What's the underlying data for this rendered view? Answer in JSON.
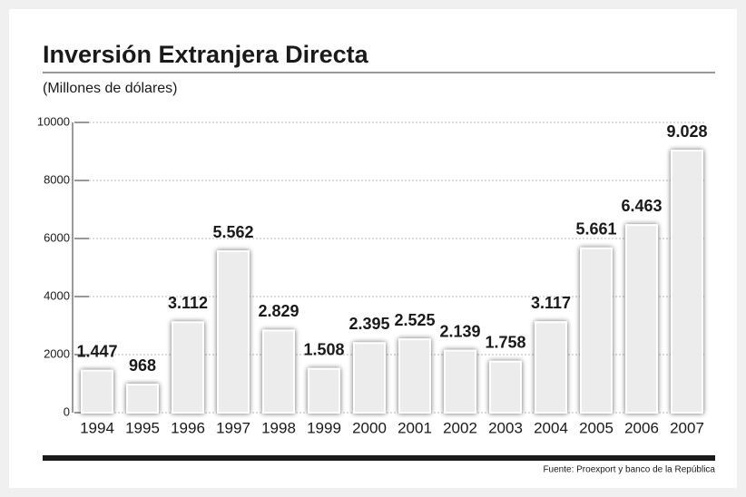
{
  "chart_data": {
    "type": "bar",
    "title": "Inversión Extranjera Directa",
    "subtitle": "(Millones de dólares)",
    "source": "Fuente: Proexport  y banco de la República",
    "categories": [
      "1994",
      "1995",
      "1996",
      "1997",
      "1998",
      "1999",
      "2000",
      "2001",
      "2002",
      "2003",
      "2004",
      "2005",
      "2006",
      "2007"
    ],
    "values": [
      1447,
      968,
      3112,
      5562,
      2829,
      1508,
      2395,
      2525,
      2139,
      1758,
      3117,
      5661,
      6463,
      9028
    ],
    "value_labels": [
      "1.447",
      "968",
      "3.112",
      "5.562",
      "2.829",
      "1.508",
      "2.395",
      "2.525",
      "2.139",
      "1.758",
      "3.117",
      "5.661",
      "6.463",
      "9.028"
    ],
    "color": "#ececec",
    "ylim": [
      0,
      10000
    ],
    "yticks": [
      0,
      2000,
      4000,
      6000,
      8000,
      10000
    ],
    "grid": true
  }
}
